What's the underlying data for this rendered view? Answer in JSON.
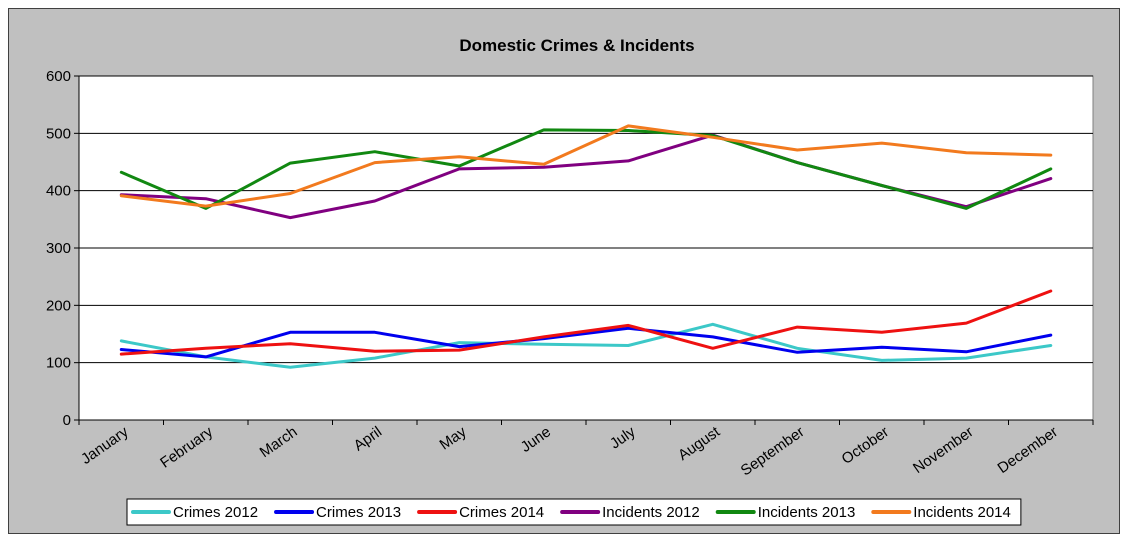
{
  "chart_data": {
    "type": "line",
    "title": "Domestic Crimes & Incidents",
    "xlabel": "",
    "ylabel": "",
    "categories": [
      "January",
      "February",
      "March",
      "April",
      "May",
      "June",
      "July",
      "August",
      "September",
      "October",
      "November",
      "December"
    ],
    "ylim": [
      0,
      600
    ],
    "yticks": [
      0,
      100,
      200,
      300,
      400,
      500,
      600
    ],
    "grid": true,
    "legend_position": "bottom",
    "series": [
      {
        "name": "Crimes 2012",
        "color": "#3cc8c8",
        "values": [
          138,
          110,
          92,
          108,
          135,
          132,
          130,
          167,
          125,
          104,
          108,
          130
        ]
      },
      {
        "name": "Crimes 2013",
        "color": "#0000ee",
        "values": [
          123,
          110,
          153,
          153,
          128,
          142,
          160,
          145,
          118,
          127,
          119,
          148
        ]
      },
      {
        "name": "Crimes 2014",
        "color": "#ee1111",
        "values": [
          115,
          125,
          133,
          120,
          122,
          145,
          165,
          125,
          162,
          153,
          169,
          225
        ]
      },
      {
        "name": "Incidents 2012",
        "color": "#800080",
        "values": [
          393,
          386,
          353,
          382,
          438,
          441,
          452,
          497,
          449,
          409,
          372,
          421
        ]
      },
      {
        "name": "Incidents 2013",
        "color": "#118811",
        "values": [
          432,
          369,
          448,
          468,
          443,
          506,
          505,
          496,
          449,
          409,
          369,
          438
        ]
      },
      {
        "name": "Incidents 2014",
        "color": "#f27a1e",
        "values": [
          391,
          373,
          395,
          449,
          459,
          446,
          513,
          493,
          471,
          483,
          466,
          462
        ]
      }
    ]
  }
}
